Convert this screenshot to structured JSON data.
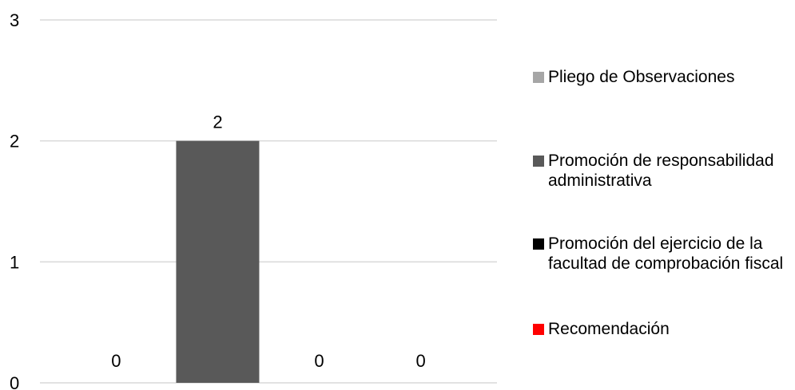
{
  "chart_data": {
    "type": "bar",
    "categories": [
      "Pliego de Observaciones",
      "Promoción de responsabilidad administrativa",
      "Promoción del ejercicio de la facultad de comprobación fiscal",
      "Recomendación"
    ],
    "values": [
      0,
      2,
      0,
      0
    ],
    "colors": [
      "#a6a6a6",
      "#595959",
      "#000000",
      "#ff0000"
    ],
    "ylim": [
      0,
      3
    ],
    "yticks": [
      "0",
      "1",
      "2",
      "3"
    ],
    "data_labels": [
      "0",
      "2",
      "0",
      "0"
    ],
    "grid": true,
    "legend_position": "right",
    "title": "",
    "xlabel": "",
    "ylabel": ""
  },
  "legend": {
    "items": [
      {
        "label": "Pliego de Observaciones",
        "color": "#a6a6a6"
      },
      {
        "label": "Promoción de responsabilidad administrativa",
        "color": "#595959"
      },
      {
        "label": "Promoción del ejercicio de la facultad de comprobación fiscal",
        "color": "#000000"
      },
      {
        "label": "Recomendación",
        "color": "#ff0000"
      }
    ]
  }
}
